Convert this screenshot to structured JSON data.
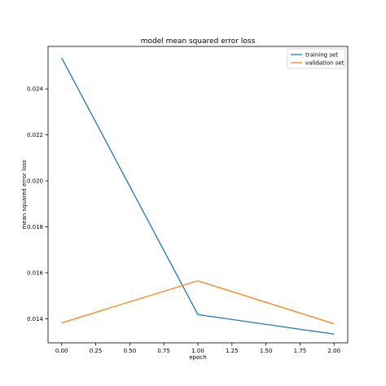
{
  "chart_data": {
    "type": "line",
    "title": "model mean squared error loss",
    "xlabel": "epoch",
    "ylabel": "mean squared error loss",
    "x": [
      0,
      1,
      2
    ],
    "xlim": [
      -0.1,
      2.1
    ],
    "ylim": [
      0.01295,
      0.02585
    ],
    "x_ticks": [
      0.0,
      0.25,
      0.5,
      0.75,
      1.0,
      1.25,
      1.5,
      1.75,
      2.0
    ],
    "x_tick_labels": [
      "0.00",
      "0.25",
      "0.50",
      "0.75",
      "1.00",
      "1.25",
      "1.50",
      "1.75",
      "2.00"
    ],
    "y_ticks": [
      0.014,
      0.016,
      0.018,
      0.02,
      0.022,
      0.024
    ],
    "y_tick_labels": [
      "0.014",
      "0.016",
      "0.018",
      "0.020",
      "0.022",
      "0.024"
    ],
    "grid": false,
    "legend_position": "top-right",
    "series": [
      {
        "name": "training set",
        "color": "#1f77b4",
        "values": [
          0.02535,
          0.01418,
          0.01333
        ]
      },
      {
        "name": "validation set",
        "color": "#ff7f0e",
        "values": [
          0.01382,
          0.01565,
          0.01378
        ]
      }
    ]
  }
}
